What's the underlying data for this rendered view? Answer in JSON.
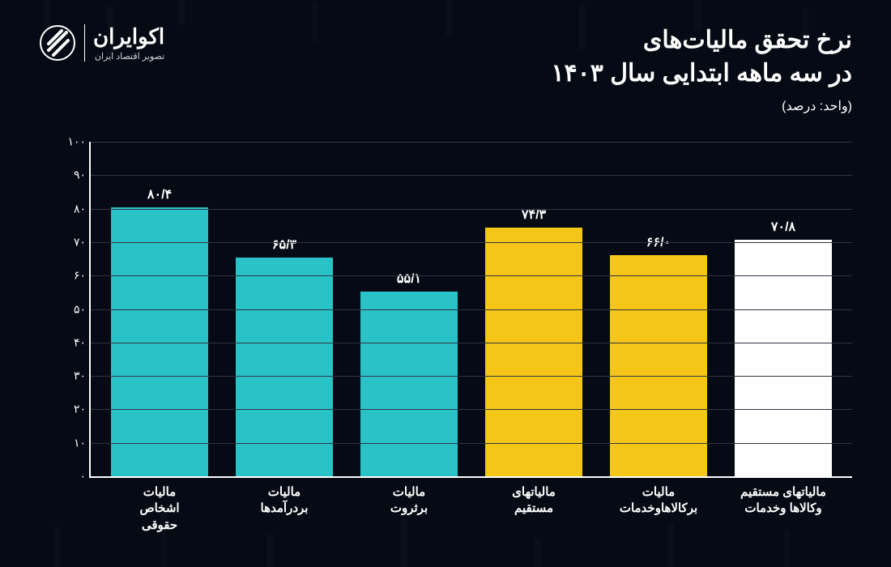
{
  "brand": {
    "name": "اکوایران",
    "tagline": "تصویر اقتصاد ایران"
  },
  "title": {
    "line1": "نرخ تحقق مالیات‌های",
    "line2": "در سه ماهه ابتدایی سال ۱۴۰۳",
    "unit": "(واحد: درصد)"
  },
  "chart": {
    "type": "bar",
    "ylim": [
      0,
      100
    ],
    "ytick_step": 10,
    "yticks": [
      "۰",
      "۱۰",
      "۲۰",
      "۳۰",
      "۴۰",
      "۵۰",
      "۶۰",
      "۷۰",
      "۸۰",
      "۹۰",
      "۱۰۰"
    ],
    "background_color": "#060a14",
    "grid_color": "#2f3542",
    "axis_color": "#ffffff",
    "bar_width_pct": 78,
    "colors": {
      "teal": "#29c3c7",
      "yellow": "#f5c518",
      "white": "#ffffff"
    },
    "bars": [
      {
        "label_l1": "مالیات",
        "label_l2": "اشخاص",
        "label_l3": "حقوقی",
        "value": 80.4,
        "value_label": "۸۰/۴",
        "color": "#29c3c7"
      },
      {
        "label_l1": "مالیات",
        "label_l2": "بردرآمدها",
        "label_l3": "",
        "value": 65.3,
        "value_label": "۶۵/۳",
        "color": "#29c3c7"
      },
      {
        "label_l1": "مالیات",
        "label_l2": "برثروت",
        "label_l3": "",
        "value": 55.1,
        "value_label": "۵۵/۱",
        "color": "#29c3c7"
      },
      {
        "label_l1": "مالیاتهای",
        "label_l2": "مستقیم",
        "label_l3": "",
        "value": 74.3,
        "value_label": "۷۴/۳",
        "color": "#f5c518"
      },
      {
        "label_l1": "مالیات",
        "label_l2": "برکالاهاوخدمات",
        "label_l3": "",
        "value": 66.0,
        "value_label": "۶۶/۰",
        "color": "#f5c518"
      },
      {
        "label_l1": "مالیاتهای مستقیم",
        "label_l2": "وکالاها وخدمات",
        "label_l3": "",
        "value": 70.8,
        "value_label": "۷۰/۸",
        "color": "#ffffff"
      }
    ]
  },
  "typography": {
    "title_fontsize": 30,
    "subtitle_fontsize": 16,
    "value_fontsize": 16,
    "xlabel_fontsize": 15,
    "ytick_fontsize": 14
  }
}
